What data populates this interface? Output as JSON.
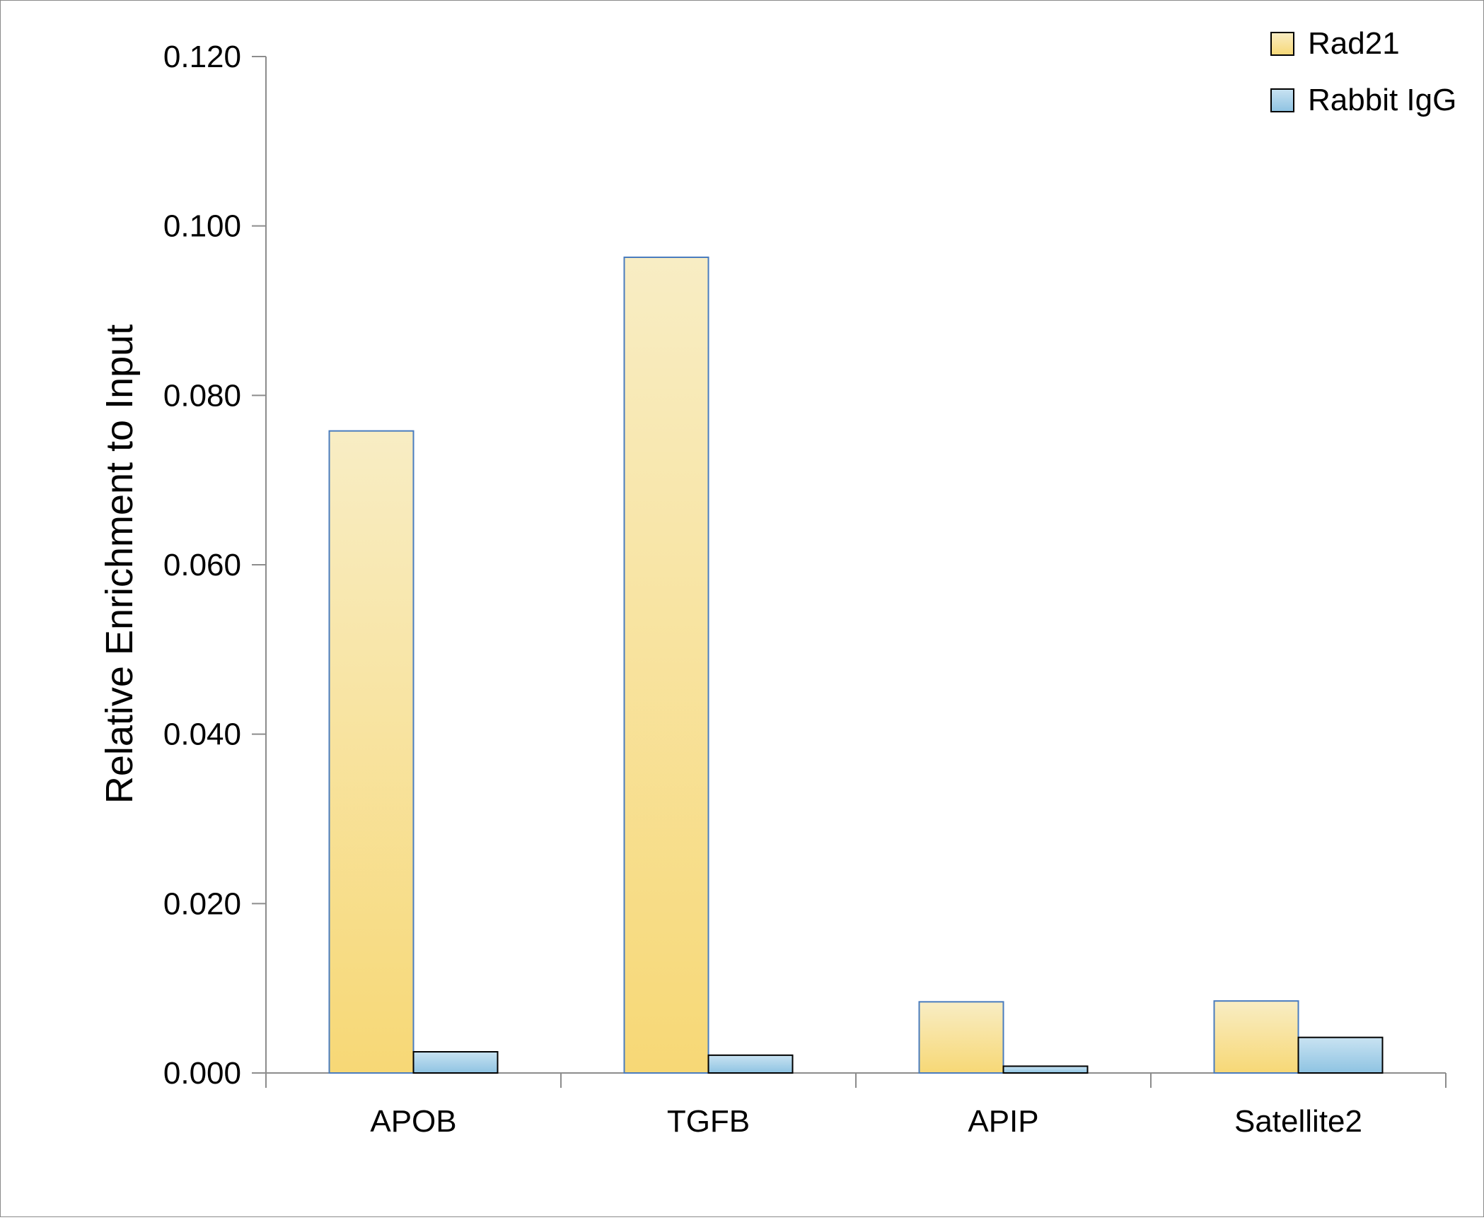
{
  "chart_data": {
    "type": "bar",
    "title": "",
    "xlabel": "",
    "ylabel": "Relative Enrichment to Input",
    "ylim": [
      0,
      0.12
    ],
    "yticks": [
      "0.000",
      "0.020",
      "0.040",
      "0.060",
      "0.080",
      "0.100",
      "0.120"
    ],
    "grid": false,
    "legend_position": "top-right",
    "categories": [
      "APOB",
      "TGFB",
      "APIP",
      "Satellite2"
    ],
    "series": [
      {
        "name": "Rad21",
        "values": [
          0.0758,
          0.0963,
          0.0084,
          0.0085
        ],
        "color_top": "#f8edc4",
        "color_bottom": "#f7d876",
        "stroke": "#4a7cbe"
      },
      {
        "name": "Rabbit IgG",
        "values": [
          0.0025,
          0.0021,
          0.0008,
          0.0042
        ],
        "color_top": "#c9e3f2",
        "color_bottom": "#8ec3e2",
        "stroke": "#000000"
      }
    ]
  }
}
